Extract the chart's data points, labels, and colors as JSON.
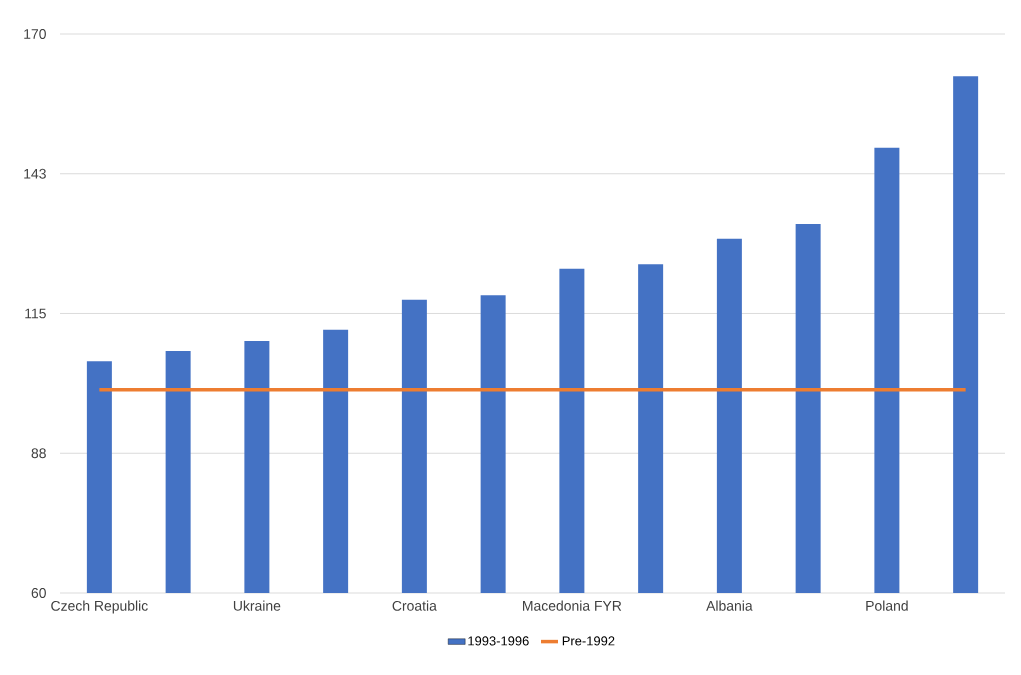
{
  "chart_data": {
    "type": "bar",
    "categories": [
      "Czech Republic",
      null,
      "Ukraine",
      null,
      "Croatia",
      null,
      "Macedonia FYR",
      null,
      "Albania",
      null,
      "Poland",
      null
    ],
    "series": [
      {
        "name": "1993-1996",
        "color": "#4472c4",
        "values": [
          105.6,
          107.6,
          109.6,
          111.8,
          117.7,
          118.6,
          123.8,
          124.7,
          129.7,
          132.6,
          147.6,
          161.7
        ]
      },
      {
        "name": "Pre-1992",
        "type": "line",
        "color": "#ed7d31",
        "values": [
          100,
          100,
          100,
          100,
          100,
          100,
          100,
          100,
          100,
          100,
          100,
          100
        ]
      }
    ],
    "ylim": [
      60,
      170
    ],
    "yticks": [
      60,
      {
        "value": 87.5,
        "label": "88"
      },
      115,
      {
        "value": 142.5,
        "label": "143"
      },
      170
    ],
    "grid": "y",
    "legend": "bottom"
  }
}
